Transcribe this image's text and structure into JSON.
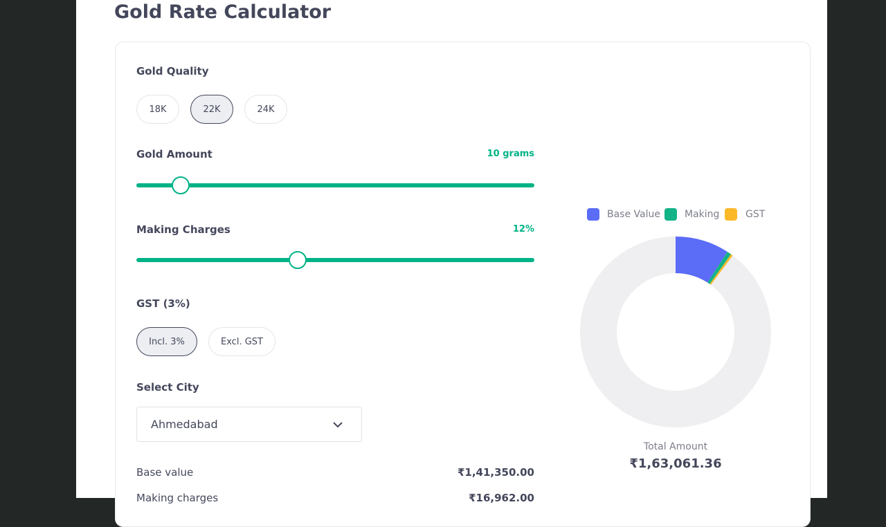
{
  "title": "Gold Rate Calculator",
  "quality": {
    "label": "Gold Quality",
    "options": [
      "18K",
      "22K",
      "24K"
    ]
  },
  "amount": {
    "label": "Gold Amount",
    "value": "10 grams"
  },
  "making": {
    "label": "Making Charges",
    "value": "12%"
  },
  "gst": {
    "label": "GST (3%)",
    "options": [
      "Incl. 3%",
      "Excl. GST"
    ]
  },
  "city": {
    "label": "Select City",
    "selected": "Ahmedabad"
  },
  "breakdown": [
    {
      "label": "Base value",
      "value": "₹1,41,350.00"
    },
    {
      "label": "Making charges",
      "value": "₹16,962.00"
    }
  ],
  "legend": [
    "Base Value",
    "Making",
    "GST"
  ],
  "total": {
    "label": "Total Amount",
    "value": "₹1,63,061.36"
  }
}
